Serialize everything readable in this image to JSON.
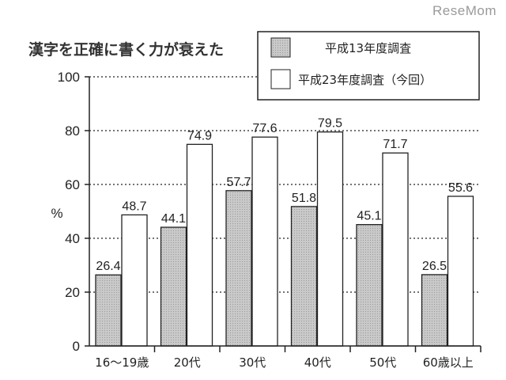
{
  "watermark": "ReseMom",
  "chart_data": {
    "type": "bar",
    "title": "漢字を正確に書く力が衰えた",
    "ylabel": "%",
    "xlabel": "",
    "ylim": [
      0,
      100
    ],
    "yticks": [
      0,
      20,
      40,
      60,
      80,
      100
    ],
    "grid": "horizontal dotted",
    "legend_position": "top-right",
    "categories": [
      "16～19歳",
      "20代",
      "30代",
      "40代",
      "50代",
      "60歳以上"
    ],
    "series": [
      {
        "name": "平成13年度調査",
        "values": [
          26.4,
          44.1,
          57.7,
          51.8,
          45.1,
          26.5
        ],
        "fill": "#c8c8c8"
      },
      {
        "name": "平成23年度調査（今回）",
        "values": [
          48.7,
          74.9,
          77.6,
          79.5,
          71.7,
          55.6
        ],
        "fill": "#ffffff"
      }
    ]
  }
}
